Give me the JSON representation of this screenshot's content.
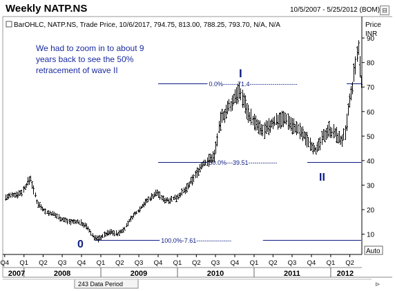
{
  "header": {
    "title": "Weekly NATP.NS",
    "date_range": "10/5/2007 - 5/25/2012 (BOM)",
    "collapse_glyph": "⊟"
  },
  "legend_line": "BarOHLC, NATP.NS, Trade Price, 10/6/2017, 794.75, 813.00, 788.25, 793.70, N/A, N/A",
  "annotation": {
    "lines": [
      "We had to zoom in to about 9",
      "years back to see the 50%",
      "retracement of wave II"
    ]
  },
  "wave_labels": {
    "zero": "0",
    "one": "I",
    "two": "II"
  },
  "footer": {
    "data_period": "243 Data Period",
    "auto_label": "Auto"
  },
  "colors": {
    "price_bars": "#000000",
    "levels": "#0a1a80",
    "annotation_text": "#1a2aa0",
    "wave_labels": "#102080"
  },
  "chart_data": {
    "type": "ohlc",
    "yaxis_title_lines": [
      "Price",
      "INR"
    ],
    "ylim": [
      2,
      92
    ],
    "yticks": [
      10,
      20,
      30,
      40,
      50,
      60,
      70,
      80,
      90
    ],
    "xlim": [
      "2007-10-05",
      "2012-05-25"
    ],
    "quarter_ticks": [
      {
        "label": "Q4",
        "date": "2007-10-01"
      },
      {
        "label": "Q1",
        "date": "2008-01-01"
      },
      {
        "label": "Q2",
        "date": "2008-04-01"
      },
      {
        "label": "Q3",
        "date": "2008-07-01"
      },
      {
        "label": "Q4",
        "date": "2008-10-01"
      },
      {
        "label": "Q1",
        "date": "2009-01-01"
      },
      {
        "label": "Q2",
        "date": "2009-04-01"
      },
      {
        "label": "Q3",
        "date": "2009-07-01"
      },
      {
        "label": "Q4",
        "date": "2009-10-01"
      },
      {
        "label": "Q1",
        "date": "2010-01-01"
      },
      {
        "label": "Q2",
        "date": "2010-04-01"
      },
      {
        "label": "Q3",
        "date": "2010-07-01"
      },
      {
        "label": "Q4",
        "date": "2010-10-01"
      },
      {
        "label": "Q1",
        "date": "2011-01-01"
      },
      {
        "label": "Q2",
        "date": "2011-04-01"
      },
      {
        "label": "Q3",
        "date": "2011-07-01"
      },
      {
        "label": "Q4",
        "date": "2011-10-01"
      },
      {
        "label": "Q1",
        "date": "2012-01-01"
      },
      {
        "label": "Q2",
        "date": "2012-04-01"
      }
    ],
    "year_labels": [
      {
        "label": "2007",
        "date": "2007-11-10"
      },
      {
        "label": "2008",
        "date": "2008-07-01"
      },
      {
        "label": "2009",
        "date": "2009-07-01"
      },
      {
        "label": "2010",
        "date": "2010-07-01"
      },
      {
        "label": "2011",
        "date": "2011-07-01"
      },
      {
        "label": "2012",
        "date": "2012-03-10"
      }
    ],
    "year_boundaries": [
      "2008-01-01",
      "2009-01-01",
      "2010-01-01",
      "2011-01-01",
      "2012-01-01"
    ],
    "retracement_levels": [
      {
        "label": "0.0%-------71.4-----------------------",
        "value": 71.4,
        "start": "2009-10-01"
      },
      {
        "label": "50.0%---39.51--------------",
        "value": 39.51,
        "start": "2009-10-01"
      },
      {
        "label": "100.0%-7.61-----------------",
        "value": 7.61,
        "start": "2008-12-01"
      }
    ],
    "series": [
      {
        "x": [
          "2007-10-05",
          "2007-11-15",
          "2007-12-20",
          "2008-01-10",
          "2008-01-31",
          "2008-03-01",
          "2008-04-15",
          "2008-05-25",
          "2008-07-01",
          "2008-08-10",
          "2008-09-20",
          "2008-10-25",
          "2008-11-25",
          "2008-12-20",
          "2009-01-20",
          "2009-02-20",
          "2009-03-20",
          "2009-04-20",
          "2009-05-20",
          "2009-06-20",
          "2009-07-20",
          "2009-08-25",
          "2009-09-25",
          "2009-10-25",
          "2009-11-25",
          "2009-12-25",
          "2010-01-25",
          "2010-02-25",
          "2010-03-25",
          "2010-04-25",
          "2010-05-25",
          "2010-06-25",
          "2010-07-25",
          "2010-08-20",
          "2010-09-15",
          "2010-10-10",
          "2010-11-05",
          "2010-12-05",
          "2011-01-05",
          "2011-02-05",
          "2011-03-05",
          "2011-04-05",
          "2011-05-05",
          "2011-06-05",
          "2011-07-05",
          "2011-08-05",
          "2011-09-05",
          "2011-10-05",
          "2011-10-25",
          "2011-11-20",
          "2011-12-20",
          "2012-01-20",
          "2012-02-20",
          "2012-03-10",
          "2012-03-25",
          "2012-04-10",
          "2012-04-25",
          "2012-05-10",
          "2012-05-25"
        ],
        "values": [
          25,
          26,
          27,
          30,
          33,
          23,
          19,
          18,
          16,
          15,
          15,
          13,
          9,
          8,
          10,
          11,
          10,
          12,
          16,
          19,
          22,
          25,
          27,
          24,
          24,
          25,
          27,
          30,
          34,
          38,
          40,
          42,
          57,
          60,
          63,
          68,
          66,
          59,
          55,
          52,
          53,
          56,
          57,
          57,
          54,
          52,
          49,
          46,
          44,
          49,
          53,
          51,
          48,
          51,
          62,
          68,
          78,
          86,
          72
        ]
      }
    ]
  }
}
